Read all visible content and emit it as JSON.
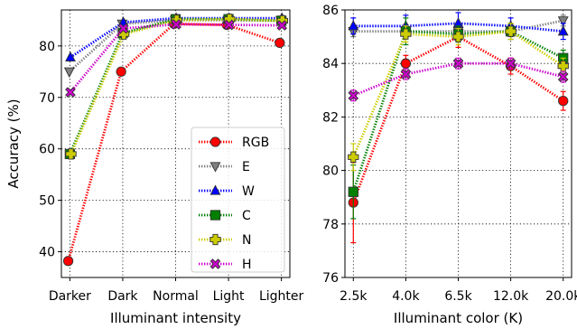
{
  "chart_data": [
    {
      "type": "line",
      "xlabel": "Illuminant intensity",
      "ylabel": "Accuracy (%)",
      "categories": [
        "Darker",
        "Dark",
        "Normal",
        "Light",
        "Lighter"
      ],
      "ylim": [
        35,
        87
      ],
      "yticks": [
        40,
        50,
        60,
        70,
        80
      ],
      "grid": true,
      "legend": {
        "placement": "lower-right",
        "entries": [
          "RGB",
          "E",
          "W",
          "C",
          "N",
          "H"
        ]
      },
      "series": [
        {
          "name": "RGB",
          "color": "#ff0000",
          "marker": "circle",
          "values": [
            38.2,
            75.0,
            84.3,
            84.1,
            80.6
          ]
        },
        {
          "name": "E",
          "color": "#808080",
          "marker": "triangle-down",
          "values": [
            75.0,
            84.3,
            85.0,
            85.0,
            84.9
          ]
        },
        {
          "name": "W",
          "color": "#0000ff",
          "marker": "triangle-up",
          "values": [
            77.8,
            84.6,
            85.4,
            85.4,
            85.4
          ]
        },
        {
          "name": "C",
          "color": "#008000",
          "marker": "square",
          "values": [
            59.0,
            82.5,
            85.2,
            85.2,
            84.9
          ]
        },
        {
          "name": "N",
          "color": "#cccc00",
          "marker": "plus",
          "values": [
            59.0,
            82.3,
            85.0,
            85.2,
            84.9
          ]
        },
        {
          "name": "H",
          "color": "#cc00cc",
          "marker": "x",
          "values": [
            71.0,
            83.4,
            84.2,
            84.1,
            84.0
          ]
        }
      ]
    },
    {
      "type": "line",
      "xlabel": "Illuminant color (K)",
      "ylabel": "",
      "categories": [
        "2.5k",
        "4.0k",
        "6.5k",
        "12.0k",
        "20.0k"
      ],
      "ylim": [
        76,
        86
      ],
      "yticks": [
        76,
        78,
        80,
        82,
        84,
        86
      ],
      "grid": true,
      "series": [
        {
          "name": "RGB",
          "color": "#ff0000",
          "marker": "circle",
          "values": [
            78.8,
            84.0,
            85.0,
            83.9,
            82.6
          ],
          "err": [
            1.5,
            0.3,
            0.4,
            0.3,
            0.35
          ]
        },
        {
          "name": "E",
          "color": "#808080",
          "marker": "triangle-down",
          "values": [
            85.2,
            85.2,
            85.2,
            85.2,
            85.6
          ],
          "err": [
            0.2,
            0.2,
            0.2,
            0.2,
            0.2
          ]
        },
        {
          "name": "W",
          "color": "#0000ff",
          "marker": "triangle-up",
          "values": [
            85.4,
            85.4,
            85.5,
            85.4,
            85.2
          ],
          "err": [
            0.3,
            0.4,
            0.4,
            0.3,
            0.3
          ]
        },
        {
          "name": "C",
          "color": "#008000",
          "marker": "square",
          "values": [
            79.2,
            85.2,
            85.1,
            85.2,
            84.2
          ],
          "err": [
            1.0,
            0.5,
            0.3,
            0.3,
            0.3
          ]
        },
        {
          "name": "N",
          "color": "#cccc00",
          "marker": "plus",
          "values": [
            80.5,
            85.1,
            85.0,
            85.2,
            83.9
          ],
          "err": [
            0.5,
            0.3,
            0.3,
            0.3,
            0.3
          ]
        },
        {
          "name": "H",
          "color": "#cc00cc",
          "marker": "x",
          "values": [
            82.8,
            83.6,
            84.0,
            84.0,
            83.5
          ],
          "err": [
            0.2,
            0.2,
            0.2,
            0.2,
            0.2
          ]
        }
      ]
    }
  ]
}
